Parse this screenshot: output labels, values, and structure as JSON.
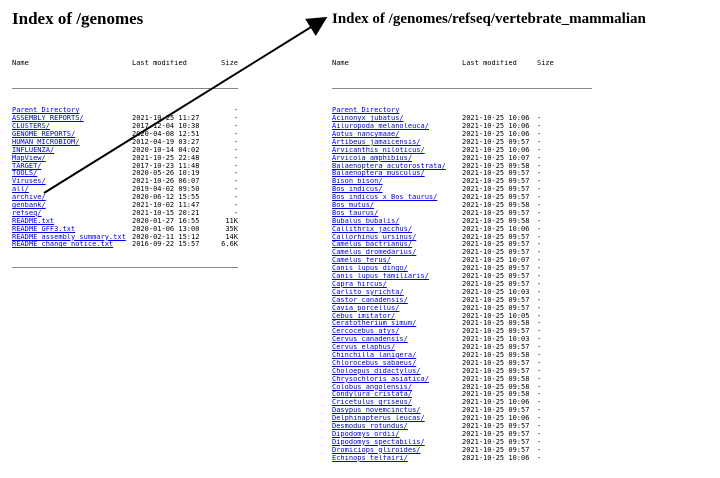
{
  "left": {
    "title": "Index of /genomes",
    "headers": {
      "name": "Name",
      "modified": "Last modified",
      "size": "Size"
    },
    "rows": [
      {
        "name": "Parent Directory",
        "date": "",
        "size": "-"
      },
      {
        "name": "ASSEMBLY_REPORTS/",
        "date": "2021-10-25 11:27",
        "size": "-"
      },
      {
        "name": "CLUSTERS/",
        "date": "2017-12-04 10:38",
        "size": "-"
      },
      {
        "name": "GENOME_REPORTS/",
        "date": "2020-04-08 12:51",
        "size": "-"
      },
      {
        "name": "HUMAN_MICROBIOM/",
        "date": "2012-04-19 03:27",
        "size": "-"
      },
      {
        "name": "INFLUENZA/",
        "date": "2020-10-14 04:02",
        "size": "-"
      },
      {
        "name": "MapView/",
        "date": "2021-10-25 22:48",
        "size": "-"
      },
      {
        "name": "TARGET/",
        "date": "2017-10-23 11:48",
        "size": "-"
      },
      {
        "name": "TOOLS/",
        "date": "2020-05-26 10:19",
        "size": "-"
      },
      {
        "name": "Viruses/",
        "date": "2021-10-26 06:07",
        "size": "-"
      },
      {
        "name": "all/",
        "date": "2019-04-02 09:50",
        "size": "-"
      },
      {
        "name": "archive/",
        "date": "2020-06-12 15:55",
        "size": "-"
      },
      {
        "name": "genbank/",
        "date": "2021-10-02 11:47",
        "size": "-"
      },
      {
        "name": "refseq/",
        "date": "2021-10-15 20:21",
        "size": "-"
      },
      {
        "name": "README.txt",
        "date": "2020-01-27 16:55",
        "size": "11K"
      },
      {
        "name": "README_GFF3.txt",
        "date": "2020-01-06 13:00",
        "size": "35K"
      },
      {
        "name": "README_assembly_summary.txt",
        "date": "2020-02-11 15:12",
        "size": "14K"
      },
      {
        "name": "README_change_notice.txt",
        "date": "2016-09-22 15:57",
        "size": "6.6K"
      }
    ]
  },
  "right": {
    "title": "Index of /genomes/refseq/vertebrate_mammalian",
    "headers": {
      "name": "Name",
      "modified": "Last modified",
      "size": "Size"
    },
    "rows": [
      {
        "name": "Parent Directory",
        "date": "",
        "size": ""
      },
      {
        "name": "Acinonyx_jubatus/",
        "date": "2021-10-25 10:06",
        "size": "-"
      },
      {
        "name": "Ailuropoda_melanoleuca/",
        "date": "2021-10-25 10:06",
        "size": "-"
      },
      {
        "name": "Aotus_nancymaae/",
        "date": "2021-10-25 10:06",
        "size": "-"
      },
      {
        "name": "Artibeus_jamaicensis/",
        "date": "2021-10-25 09:57",
        "size": "-"
      },
      {
        "name": "Arvicanthis_niloticus/",
        "date": "2021-10-25 10:06",
        "size": "-"
      },
      {
        "name": "Arvicola_amphibius/",
        "date": "2021-10-25 10:07",
        "size": "-"
      },
      {
        "name": "Balaenoptera_acutorostrata/",
        "date": "2021-10-25 09:58",
        "size": "-"
      },
      {
        "name": "Balaenoptera_musculus/",
        "date": "2021-10-25 09:57",
        "size": "-"
      },
      {
        "name": "Bison_bison/",
        "date": "2021-10-25 09:57",
        "size": "-"
      },
      {
        "name": "Bos_indicus/",
        "date": "2021-10-25 09:57",
        "size": "-"
      },
      {
        "name": "Bos_indicus_x_Bos_taurus/",
        "date": "2021-10-25 09:57",
        "size": "-"
      },
      {
        "name": "Bos_mutus/",
        "date": "2021-10-25 09:58",
        "size": "-"
      },
      {
        "name": "Bos_taurus/",
        "date": "2021-10-25 09:57",
        "size": "-"
      },
      {
        "name": "Bubalus_bubalis/",
        "date": "2021-10-25 09:58",
        "size": "-"
      },
      {
        "name": "Callithrix_jacchus/",
        "date": "2021-10-25 10:06",
        "size": "-"
      },
      {
        "name": "Callorhinus_ursinus/",
        "date": "2021-10-25 09:57",
        "size": "-"
      },
      {
        "name": "Camelus_bactrianus/",
        "date": "2021-10-25 09:57",
        "size": "-"
      },
      {
        "name": "Camelus_dromedarius/",
        "date": "2021-10-25 09:57",
        "size": "-"
      },
      {
        "name": "Camelus_ferus/",
        "date": "2021-10-25 10:07",
        "size": "-"
      },
      {
        "name": "Canis_lupus_dingo/",
        "date": "2021-10-25 09:57",
        "size": "-"
      },
      {
        "name": "Canis_lupus_familiaris/",
        "date": "2021-10-25 09:57",
        "size": "-"
      },
      {
        "name": "Capra_hircus/",
        "date": "2021-10-25 09:57",
        "size": "-"
      },
      {
        "name": "Carlito_syrichta/",
        "date": "2021-10-25 10:03",
        "size": "-"
      },
      {
        "name": "Castor_canadensis/",
        "date": "2021-10-25 09:57",
        "size": "-"
      },
      {
        "name": "Cavia_porcellus/",
        "date": "2021-10-25 09:57",
        "size": "-"
      },
      {
        "name": "Cebus_imitator/",
        "date": "2021-10-25 10:05",
        "size": "-"
      },
      {
        "name": "Ceratotherium_simum/",
        "date": "2021-10-25 09:58",
        "size": "-"
      },
      {
        "name": "Cercocebus_atys/",
        "date": "2021-10-25 09:57",
        "size": "-"
      },
      {
        "name": "Cervus_canadensis/",
        "date": "2021-10-25 10:03",
        "size": "-"
      },
      {
        "name": "Cervus_elaphus/",
        "date": "2021-10-25 09:57",
        "size": "-"
      },
      {
        "name": "Chinchilla_lanigera/",
        "date": "2021-10-25 09:58",
        "size": "-"
      },
      {
        "name": "Chlorocebus_sabaeus/",
        "date": "2021-10-25 09:57",
        "size": "-"
      },
      {
        "name": "Choloepus_didactylus/",
        "date": "2021-10-25 09:57",
        "size": "-"
      },
      {
        "name": "Chrysochloris_asiatica/",
        "date": "2021-10-25 09:58",
        "size": "-"
      },
      {
        "name": "Colobus_angolensis/",
        "date": "2021-10-25 09:58",
        "size": "-"
      },
      {
        "name": "Condylura_cristata/",
        "date": "2021-10-25 09:58",
        "size": "-"
      },
      {
        "name": "Cricetulus_griseus/",
        "date": "2021-10-25 10:06",
        "size": "-"
      },
      {
        "name": "Dasypus_novemcinctus/",
        "date": "2021-10-25 09:57",
        "size": "-"
      },
      {
        "name": "Delphinapterus_leucas/",
        "date": "2021-10-25 10:06",
        "size": "-"
      },
      {
        "name": "Desmodus_rotundus/",
        "date": "2021-10-25 09:57",
        "size": "-"
      },
      {
        "name": "Dipodomys_ordii/",
        "date": "2021-10-25 09:57",
        "size": "-"
      },
      {
        "name": "Dipodomys_spectabilis/",
        "date": "2021-10-25 09:57",
        "size": "-"
      },
      {
        "name": "Dromiciops_gliroides/",
        "date": "2021-10-25 09:57",
        "size": "-"
      },
      {
        "name": "Echinops_telfairi/",
        "date": "2021-10-25 10:06",
        "size": "-"
      }
    ]
  },
  "colors": {
    "link": "#0000ee",
    "text": "#000000",
    "rule": "#888888",
    "arrow": "#000000"
  },
  "annotation": {
    "type": "arrow",
    "meaning": "refseq/ link leads to right panel title"
  }
}
